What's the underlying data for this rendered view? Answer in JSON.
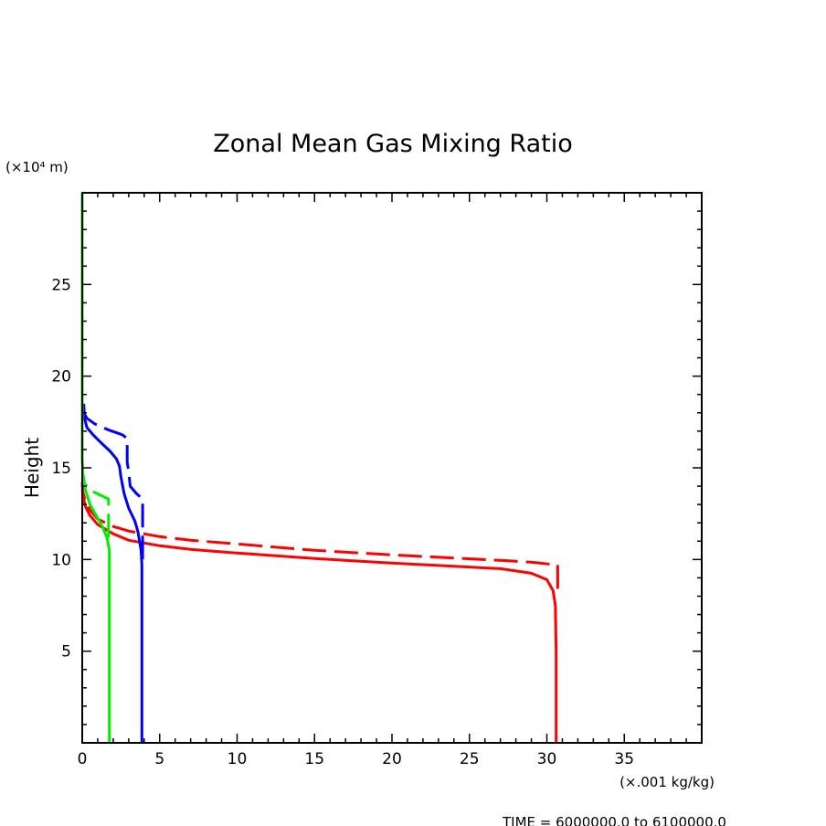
{
  "chart_data": {
    "type": "line",
    "title": "Zonal Mean Gas Mixing Ratio",
    "ylabel": "Height",
    "y_unit_label": "(×10⁴ m)",
    "x_unit_label": "(×.001 kg/kg)",
    "footer": "TIME = 6000000.0 to 6100000.0",
    "xlim": [
      0,
      40
    ],
    "ylim": [
      0,
      30000
    ],
    "x_ticks": [
      0,
      5,
      10,
      15,
      20,
      25,
      30,
      35
    ],
    "x_tick_labels": [
      "0",
      "5",
      "10",
      "15",
      "20",
      "25",
      "30",
      "35"
    ],
    "y_ticks": [
      5000,
      10000,
      15000,
      20000,
      25000
    ],
    "y_tick_labels": [
      "5",
      "10",
      "15",
      "20",
      "25"
    ],
    "grid": false,
    "series": [
      {
        "color": "#ff0000",
        "dash": "solid",
        "points": [
          [
            30.6,
            0
          ],
          [
            30.6,
            5000
          ],
          [
            30.55,
            7500
          ],
          [
            30.4,
            8300
          ],
          [
            30.0,
            8900
          ],
          [
            29.0,
            9250
          ],
          [
            27.0,
            9500
          ],
          [
            20.0,
            9800
          ],
          [
            15.0,
            10050
          ],
          [
            10.0,
            10350
          ],
          [
            7.0,
            10550
          ],
          [
            5.0,
            10750
          ],
          [
            3.0,
            11050
          ],
          [
            2.0,
            11400
          ],
          [
            1.0,
            11900
          ],
          [
            0.5,
            12400
          ],
          [
            0.2,
            12900
          ],
          [
            0.05,
            13500
          ],
          [
            0,
            14200
          ]
        ]
      },
      {
        "color": "#ff0000",
        "dash": "dashed",
        "points": [
          [
            30.7,
            8400
          ],
          [
            30.7,
            9700
          ],
          [
            29.0,
            9850
          ],
          [
            27.0,
            9950
          ],
          [
            20.0,
            10250
          ],
          [
            15.0,
            10500
          ],
          [
            10.0,
            10850
          ],
          [
            7.0,
            11050
          ],
          [
            5.0,
            11250
          ],
          [
            3.0,
            11550
          ],
          [
            2.0,
            11800
          ],
          [
            1.0,
            12200
          ],
          [
            0.5,
            12700
          ],
          [
            0.2,
            13200
          ],
          [
            0,
            13800
          ]
        ]
      },
      {
        "color": "#0000ff",
        "dash": "solid",
        "points": [
          [
            3.85,
            0
          ],
          [
            3.85,
            9700
          ],
          [
            3.8,
            10500
          ],
          [
            3.6,
            11500
          ],
          [
            3.4,
            12100
          ],
          [
            3.0,
            12800
          ],
          [
            2.7,
            13600
          ],
          [
            2.5,
            14500
          ],
          [
            2.4,
            15100
          ],
          [
            2.2,
            15500
          ],
          [
            1.8,
            15900
          ],
          [
            1.3,
            16300
          ],
          [
            0.7,
            16800
          ],
          [
            0.3,
            17200
          ],
          [
            0.15,
            17700
          ],
          [
            0.1,
            18500
          ]
        ]
      },
      {
        "color": "#0000ff",
        "dash": "dashed",
        "points": [
          [
            3.9,
            10000
          ],
          [
            3.9,
            13300
          ],
          [
            3.5,
            13600
          ],
          [
            3.1,
            14000
          ],
          [
            3.0,
            14800
          ],
          [
            2.9,
            15300
          ],
          [
            2.9,
            16600
          ],
          [
            2.6,
            16800
          ],
          [
            1.6,
            17100
          ],
          [
            0.8,
            17400
          ],
          [
            0.3,
            17700
          ],
          [
            0.1,
            18000
          ]
        ]
      },
      {
        "color": "#00ee00",
        "dash": "solid",
        "points": [
          [
            1.75,
            0
          ],
          [
            1.75,
            10500
          ],
          [
            1.6,
            11200
          ],
          [
            1.3,
            11800
          ],
          [
            0.9,
            12400
          ],
          [
            0.5,
            13000
          ],
          [
            0.2,
            13800
          ],
          [
            0.05,
            14700
          ],
          [
            0,
            15500
          ],
          [
            0,
            30000
          ]
        ]
      },
      {
        "color": "#00ee00",
        "dash": "dashed",
        "points": [
          [
            1.7,
            11200
          ],
          [
            1.7,
            13300
          ],
          [
            1.2,
            13500
          ],
          [
            0.7,
            13700
          ],
          [
            0.4,
            13900
          ],
          [
            0.2,
            14100
          ],
          [
            0,
            14300
          ]
        ]
      }
    ]
  }
}
